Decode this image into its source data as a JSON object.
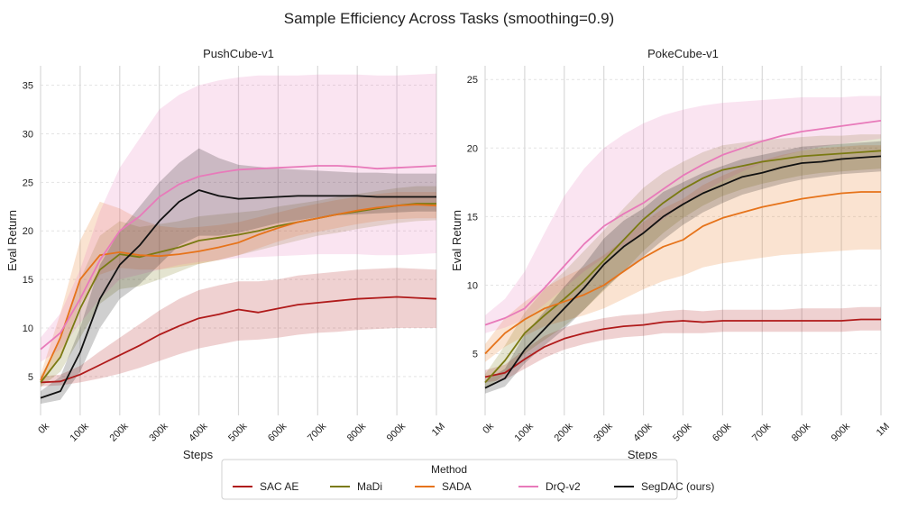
{
  "figure_title": "Sample Efficiency Across Tasks (smoothing=0.9)",
  "legend": {
    "title": "Method",
    "placement": "bottom-center",
    "items": [
      {
        "name": "SAC AE",
        "color": "#b01a1a"
      },
      {
        "name": "MaDi",
        "color": "#7a7a12"
      },
      {
        "name": "SADA",
        "color": "#e6731a"
      },
      {
        "name": "DrQ-v2",
        "color": "#e87aba"
      },
      {
        "name": "SegDAC (ours)",
        "color": "#111111"
      }
    ]
  },
  "chart_data": [
    {
      "type": "line",
      "title": "PushCube-v1",
      "xlabel": "Steps",
      "ylabel": "Eval Return",
      "xlim": [
        0,
        1000000
      ],
      "ylim": [
        1,
        37
      ],
      "yticks": [
        5,
        10,
        15,
        20,
        25,
        30,
        35
      ],
      "xticks": [
        0,
        100000,
        200000,
        300000,
        400000,
        500000,
        600000,
        700000,
        800000,
        900000,
        1000000
      ],
      "xtick_labels": [
        "0k",
        "100k",
        "200k",
        "300k",
        "400k",
        "500k",
        "600k",
        "700k",
        "800k",
        "900k",
        "1M"
      ],
      "grid": true,
      "x": [
        0,
        50000,
        100000,
        150000,
        200000,
        250000,
        300000,
        350000,
        400000,
        450000,
        500000,
        550000,
        600000,
        650000,
        700000,
        750000,
        800000,
        850000,
        900000,
        950000,
        1000000
      ],
      "series": [
        {
          "name": "SAC AE",
          "color": "#b01a1a",
          "values": [
            4.4,
            4.5,
            5.2,
            6.2,
            7.2,
            8.2,
            9.3,
            10.2,
            11.0,
            11.4,
            11.9,
            11.6,
            12.0,
            12.4,
            12.6,
            12.8,
            13.0,
            13.1,
            13.2,
            13.1,
            13.0
          ],
          "lower": [
            4.0,
            4.1,
            4.4,
            4.8,
            5.3,
            5.9,
            6.6,
            7.3,
            7.9,
            8.3,
            8.7,
            8.8,
            9.0,
            9.3,
            9.5,
            9.6,
            9.8,
            9.9,
            10.0,
            10.0,
            10.0
          ],
          "upper": [
            5.0,
            5.2,
            6.1,
            7.6,
            9.0,
            10.4,
            11.8,
            13.0,
            13.9,
            14.4,
            14.8,
            14.8,
            15.0,
            15.4,
            15.6,
            15.8,
            16.0,
            16.1,
            16.2,
            16.1,
            16.0
          ]
        },
        {
          "name": "MaDi",
          "color": "#7a7a12",
          "values": [
            4.4,
            7.0,
            12.0,
            16.0,
            17.6,
            17.3,
            17.8,
            18.3,
            19.0,
            19.3,
            19.6,
            20.0,
            20.5,
            20.9,
            21.3,
            21.7,
            22.0,
            22.3,
            22.6,
            22.8,
            22.8
          ],
          "lower": [
            3.9,
            5.5,
            9.0,
            12.5,
            14.0,
            14.3,
            15.0,
            15.8,
            16.6,
            17.0,
            17.5,
            18.0,
            18.5,
            19.0,
            19.5,
            19.8,
            20.2,
            20.5,
            20.8,
            21.0,
            21.1
          ],
          "upper": [
            5.0,
            8.8,
            15.0,
            19.5,
            21.0,
            20.4,
            20.7,
            21.0,
            21.5,
            21.7,
            21.9,
            22.1,
            22.5,
            22.8,
            23.1,
            23.5,
            23.8,
            24.1,
            24.4,
            24.6,
            24.6
          ]
        },
        {
          "name": "SADA",
          "color": "#e6731a",
          "values": [
            4.6,
            9.0,
            15.0,
            17.5,
            17.8,
            17.5,
            17.4,
            17.6,
            17.9,
            18.3,
            18.8,
            19.6,
            20.3,
            20.9,
            21.3,
            21.7,
            22.1,
            22.4,
            22.6,
            22.7,
            22.6
          ],
          "lower": [
            4.1,
            7.0,
            12.5,
            15.5,
            16.2,
            16.0,
            16.0,
            16.3,
            16.6,
            17.0,
            17.5,
            18.2,
            18.9,
            19.5,
            19.9,
            20.3,
            20.7,
            21.0,
            21.2,
            21.3,
            21.3
          ],
          "upper": [
            5.2,
            11.5,
            19.0,
            23.0,
            22.3,
            21.2,
            20.5,
            20.3,
            20.4,
            20.6,
            20.9,
            21.4,
            21.9,
            22.4,
            22.8,
            23.2,
            23.5,
            23.8,
            24.0,
            24.0,
            24.0
          ]
        },
        {
          "name": "DrQ-v2",
          "color": "#e87aba",
          "values": [
            7.8,
            9.5,
            13.0,
            17.0,
            20.0,
            21.5,
            23.5,
            24.8,
            25.6,
            26.0,
            26.3,
            26.4,
            26.5,
            26.6,
            26.7,
            26.7,
            26.6,
            26.4,
            26.5,
            26.6,
            26.7
          ],
          "lower": [
            6.5,
            7.8,
            10.5,
            13.0,
            15.0,
            15.5,
            16.0,
            16.5,
            16.8,
            17.0,
            17.2,
            17.3,
            17.4,
            17.5,
            17.6,
            17.6,
            17.6,
            17.5,
            17.5,
            17.6,
            17.7
          ],
          "upper": [
            9.0,
            11.5,
            16.0,
            22.0,
            26.5,
            29.5,
            32.5,
            34.0,
            35.0,
            35.5,
            35.8,
            36.0,
            36.0,
            36.0,
            36.1,
            36.1,
            36.1,
            36.0,
            36.0,
            36.1,
            36.2
          ]
        },
        {
          "name": "SegDAC (ours)",
          "color": "#111111",
          "values": [
            2.8,
            3.5,
            7.5,
            13.0,
            16.5,
            18.5,
            21.0,
            23.0,
            24.2,
            23.6,
            23.3,
            23.4,
            23.5,
            23.6,
            23.6,
            23.6,
            23.6,
            23.5,
            23.5,
            23.5,
            23.5
          ],
          "lower": [
            2.2,
            2.6,
            5.5,
            10.0,
            13.0,
            14.5,
            16.5,
            18.5,
            19.5,
            19.5,
            19.8,
            20.3,
            20.8,
            21.1,
            21.4,
            21.6,
            21.7,
            21.8,
            21.9,
            22.0,
            22.0
          ],
          "upper": [
            3.5,
            5.0,
            10.0,
            16.5,
            20.0,
            22.5,
            25.0,
            27.0,
            28.5,
            27.5,
            26.8,
            26.6,
            26.4,
            26.3,
            26.2,
            26.1,
            26.0,
            26.0,
            25.9,
            25.9,
            25.9
          ]
        }
      ]
    },
    {
      "type": "line",
      "title": "PokeCube-v1",
      "xlabel": "Steps",
      "ylabel": "Eval Return",
      "xlim": [
        0,
        1000000
      ],
      "ylim": [
        0.5,
        26
      ],
      "yticks": [
        5,
        10,
        15,
        20,
        25
      ],
      "xticks": [
        0,
        100000,
        200000,
        300000,
        400000,
        500000,
        600000,
        700000,
        800000,
        900000,
        1000000
      ],
      "xtick_labels": [
        "0k",
        "100k",
        "200k",
        "300k",
        "400k",
        "500k",
        "600k",
        "700k",
        "800k",
        "900k",
        "1M"
      ],
      "grid": true,
      "x": [
        0,
        50000,
        100000,
        150000,
        200000,
        250000,
        300000,
        350000,
        400000,
        450000,
        500000,
        550000,
        600000,
        650000,
        700000,
        750000,
        800000,
        850000,
        900000,
        950000,
        1000000
      ],
      "series": [
        {
          "name": "SAC AE",
          "color": "#b01a1a",
          "values": [
            3.3,
            3.6,
            4.6,
            5.5,
            6.1,
            6.5,
            6.8,
            7.0,
            7.1,
            7.3,
            7.4,
            7.3,
            7.4,
            7.4,
            7.4,
            7.4,
            7.4,
            7.4,
            7.4,
            7.5,
            7.5
          ],
          "lower": [
            2.9,
            3.1,
            3.9,
            4.7,
            5.3,
            5.7,
            6.0,
            6.2,
            6.3,
            6.5,
            6.5,
            6.5,
            6.6,
            6.6,
            6.6,
            6.6,
            6.6,
            6.6,
            6.6,
            6.7,
            6.7
          ],
          "upper": [
            3.8,
            4.2,
            5.3,
            6.3,
            6.9,
            7.3,
            7.6,
            7.8,
            7.9,
            8.1,
            8.2,
            8.1,
            8.2,
            8.2,
            8.2,
            8.2,
            8.3,
            8.3,
            8.3,
            8.4,
            8.4
          ]
        },
        {
          "name": "MaDi",
          "color": "#7a7a12",
          "values": [
            2.9,
            4.5,
            6.5,
            7.8,
            9.0,
            10.3,
            11.8,
            13.3,
            14.8,
            16.0,
            17.0,
            17.8,
            18.4,
            18.7,
            19.0,
            19.2,
            19.4,
            19.5,
            19.6,
            19.7,
            19.8
          ],
          "lower": [
            2.4,
            3.5,
            5.0,
            6.0,
            7.0,
            8.2,
            9.6,
            11.0,
            12.5,
            13.8,
            14.9,
            15.8,
            16.5,
            17.0,
            17.4,
            17.7,
            18.0,
            18.2,
            18.3,
            18.4,
            18.5
          ],
          "upper": [
            3.5,
            5.6,
            8.0,
            9.7,
            11.0,
            12.5,
            14.0,
            15.6,
            17.1,
            18.2,
            19.0,
            19.7,
            20.2,
            20.4,
            20.6,
            20.7,
            20.8,
            20.9,
            20.9,
            21.0,
            21.0
          ]
        },
        {
          "name": "SADA",
          "color": "#e6731a",
          "values": [
            5.0,
            6.5,
            7.5,
            8.3,
            8.8,
            9.3,
            10.0,
            11.0,
            12.0,
            12.8,
            13.3,
            14.3,
            14.9,
            15.3,
            15.7,
            16.0,
            16.3,
            16.5,
            16.7,
            16.8,
            16.8
          ],
          "lower": [
            4.4,
            5.5,
            6.3,
            7.0,
            7.4,
            7.8,
            8.3,
            9.0,
            9.7,
            10.3,
            10.7,
            11.3,
            11.6,
            11.8,
            12.0,
            12.2,
            12.3,
            12.4,
            12.5,
            12.6,
            12.6
          ],
          "upper": [
            5.7,
            7.6,
            8.8,
            9.8,
            10.6,
            11.3,
            12.2,
            13.3,
            14.6,
            15.6,
            16.3,
            17.3,
            18.0,
            18.6,
            19.1,
            19.5,
            19.8,
            20.0,
            20.1,
            20.2,
            20.2
          ]
        },
        {
          "name": "DrQ-v2",
          "color": "#e87aba",
          "values": [
            7.1,
            7.6,
            8.3,
            9.8,
            11.4,
            13.0,
            14.3,
            15.2,
            16.0,
            17.0,
            18.0,
            18.8,
            19.5,
            20.0,
            20.5,
            20.9,
            21.2,
            21.4,
            21.6,
            21.8,
            22.0
          ],
          "lower": [
            6.5,
            6.9,
            7.5,
            8.6,
            9.8,
            11.0,
            12.0,
            12.9,
            13.8,
            14.8,
            15.9,
            16.8,
            17.6,
            18.3,
            18.9,
            19.4,
            19.8,
            20.1,
            20.3,
            20.5,
            20.7
          ],
          "upper": [
            7.8,
            9.0,
            11.0,
            13.8,
            16.5,
            18.5,
            20.0,
            21.0,
            21.8,
            22.4,
            22.8,
            23.1,
            23.3,
            23.4,
            23.5,
            23.6,
            23.7,
            23.7,
            23.7,
            23.8,
            23.8
          ]
        },
        {
          "name": "SegDAC (ours)",
          "color": "#111111",
          "values": [
            2.5,
            3.2,
            5.3,
            6.8,
            8.3,
            9.8,
            11.5,
            12.8,
            13.8,
            15.0,
            15.9,
            16.7,
            17.3,
            17.9,
            18.2,
            18.6,
            18.9,
            19.0,
            19.2,
            19.3,
            19.4
          ],
          "lower": [
            2.1,
            2.6,
            4.3,
            5.6,
            6.8,
            8.2,
            9.7,
            11.0,
            12.1,
            13.3,
            14.4,
            15.3,
            16.0,
            16.6,
            17.0,
            17.4,
            17.7,
            17.9,
            18.1,
            18.2,
            18.3
          ],
          "upper": [
            3.0,
            3.9,
            6.4,
            8.1,
            9.9,
            11.5,
            13.4,
            14.7,
            15.6,
            16.8,
            17.5,
            18.2,
            18.7,
            19.2,
            19.5,
            19.8,
            20.1,
            20.2,
            20.3,
            20.4,
            20.5
          ]
        }
      ]
    }
  ]
}
